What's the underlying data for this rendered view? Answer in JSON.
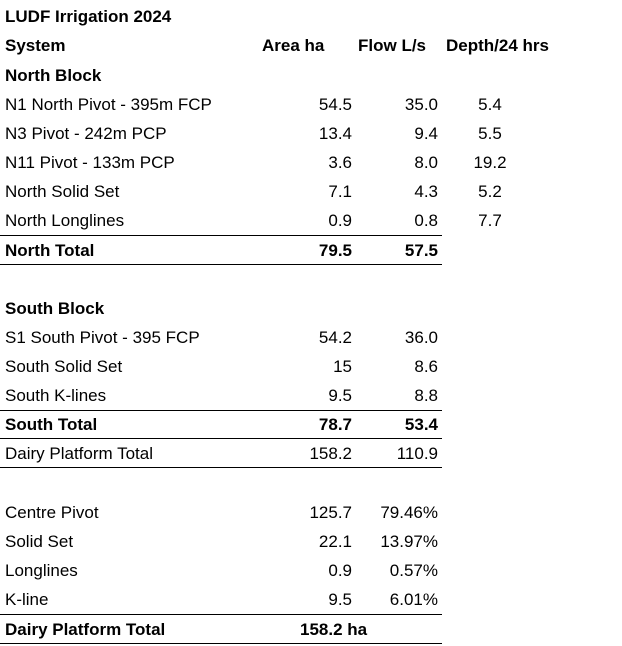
{
  "title": "LUDF Irrigation 2024",
  "header": {
    "system": "System",
    "area": "Area ha",
    "flow": "Flow L/s",
    "depth": "Depth/24 hrs"
  },
  "north": {
    "heading": "North Block",
    "rows": [
      {
        "name": "N1 North Pivot - 395m FCP",
        "area": "54.5",
        "flow": "35.0",
        "depth": "5.4"
      },
      {
        "name": "N3 Pivot - 242m PCP",
        "area": "13.4",
        "flow": "9.4",
        "depth": "5.5"
      },
      {
        "name": "N11 Pivot - 133m PCP",
        "area": "3.6",
        "flow": "8.0",
        "depth": "19.2"
      },
      {
        "name": "North Solid Set",
        "area": "7.1",
        "flow": "4.3",
        "depth": "5.2"
      },
      {
        "name": "North Longlines",
        "area": "0.9",
        "flow": "0.8",
        "depth": "7.7"
      }
    ],
    "total": {
      "name": "North Total",
      "area": "79.5",
      "flow": "57.5"
    }
  },
  "south": {
    "heading": "South Block",
    "rows": [
      {
        "name": "S1 South Pivot - 395 FCP",
        "area": "54.2",
        "flow": "36.0"
      },
      {
        "name": "South Solid Set",
        "area": "15",
        "flow": "8.6"
      },
      {
        "name": "South K-lines",
        "area": "9.5",
        "flow": "8.8"
      }
    ],
    "total": {
      "name": "South Total",
      "area": "78.7",
      "flow": "53.4"
    }
  },
  "dairy_total": {
    "name": "Dairy Platform Total",
    "area": "158.2",
    "flow": "110.9"
  },
  "summary": {
    "rows": [
      {
        "name": "Centre Pivot",
        "area": "125.7",
        "share": "79.46%"
      },
      {
        "name": "Solid Set",
        "area": "22.1",
        "share": "13.97%"
      },
      {
        "name": "Longlines",
        "area": "0.9",
        "share": "0.57%"
      },
      {
        "name": "K-line",
        "area": "9.5",
        "share": "6.01%"
      }
    ],
    "total": {
      "name": "Dairy Platform Total",
      "area": "158.2 ha"
    }
  }
}
